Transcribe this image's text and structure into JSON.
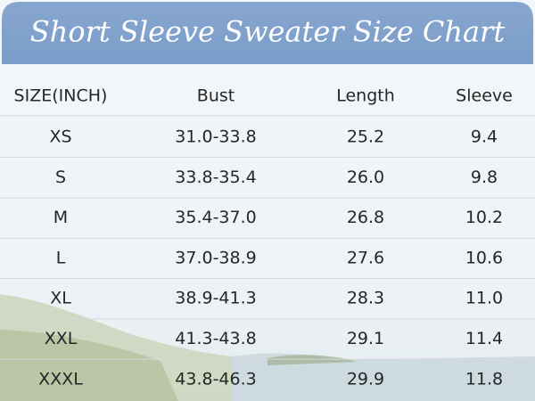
{
  "header": {
    "title": "Short Sleeve Sweater Size Chart"
  },
  "table": {
    "columns": [
      "SIZE(INCH)",
      "Bust",
      "Length",
      "Sleeve"
    ],
    "rows": [
      [
        "XS",
        "31.0-33.8",
        "25.2",
        "9.4"
      ],
      [
        "S",
        "33.8-35.4",
        "26.0",
        "9.8"
      ],
      [
        "M",
        "35.4-37.0",
        "26.8",
        "10.2"
      ],
      [
        "L",
        "37.0-38.9",
        "27.6",
        "10.6"
      ],
      [
        "XL",
        "38.9-41.3",
        "28.3",
        "11.0"
      ],
      [
        "XXL",
        "41.3-43.8",
        "29.1",
        "11.4"
      ],
      [
        "XXXL",
        "43.8-46.3",
        "29.9",
        "11.8"
      ]
    ]
  }
}
